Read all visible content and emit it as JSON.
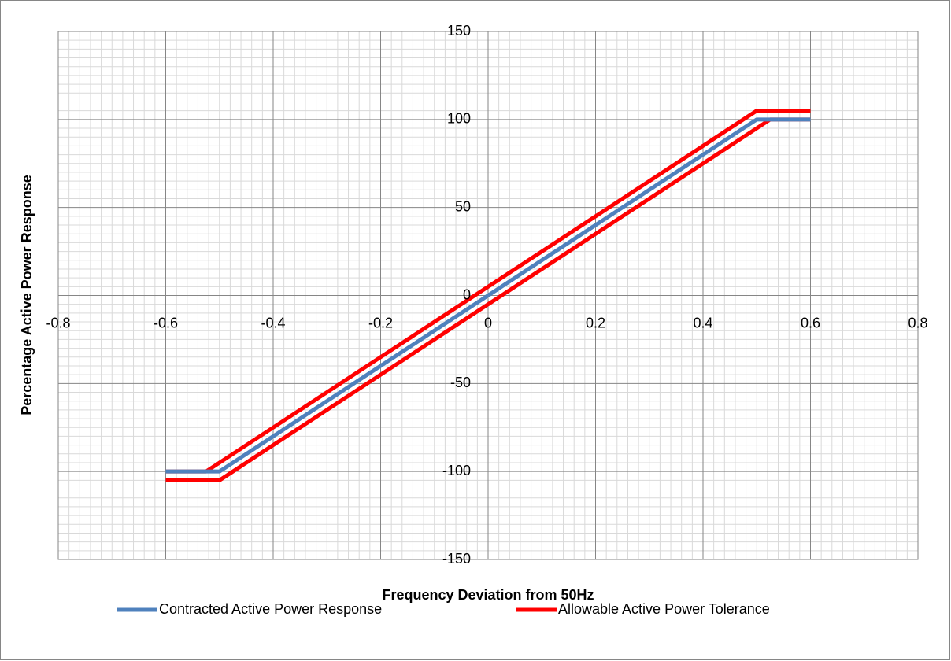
{
  "chart_data": {
    "type": "line",
    "x_label": "Frequency Deviation from 50Hz",
    "y_label": "Percentage Active Power Response",
    "xlim": [
      -0.8,
      0.8
    ],
    "xticks": [
      -0.8,
      -0.6,
      -0.4,
      -0.2,
      0,
      0.2,
      0.4,
      0.6,
      0.8
    ],
    "ylim": [
      -150,
      150
    ],
    "yticks": [
      -150,
      -100,
      -50,
      0,
      50,
      100,
      150
    ],
    "grid": true,
    "minor_grid": true,
    "legend": "bottom",
    "series": [
      {
        "name": "Contracted Active Power Response",
        "color": "#4f81bd",
        "x": [
          -0.6,
          -0.5,
          0.5,
          0.6
        ],
        "values": [
          -100,
          -100,
          100,
          100
        ]
      },
      {
        "name": "Allowable Active Power Tolerance",
        "color": "#ff0000",
        "x": [
          -0.6,
          -0.525,
          0.5,
          0.6,
          null,
          -0.6,
          -0.5,
          0.525,
          0.6
        ],
        "values": [
          -100,
          -100,
          105,
          105,
          null,
          -105,
          -105,
          100,
          100
        ]
      }
    ]
  }
}
